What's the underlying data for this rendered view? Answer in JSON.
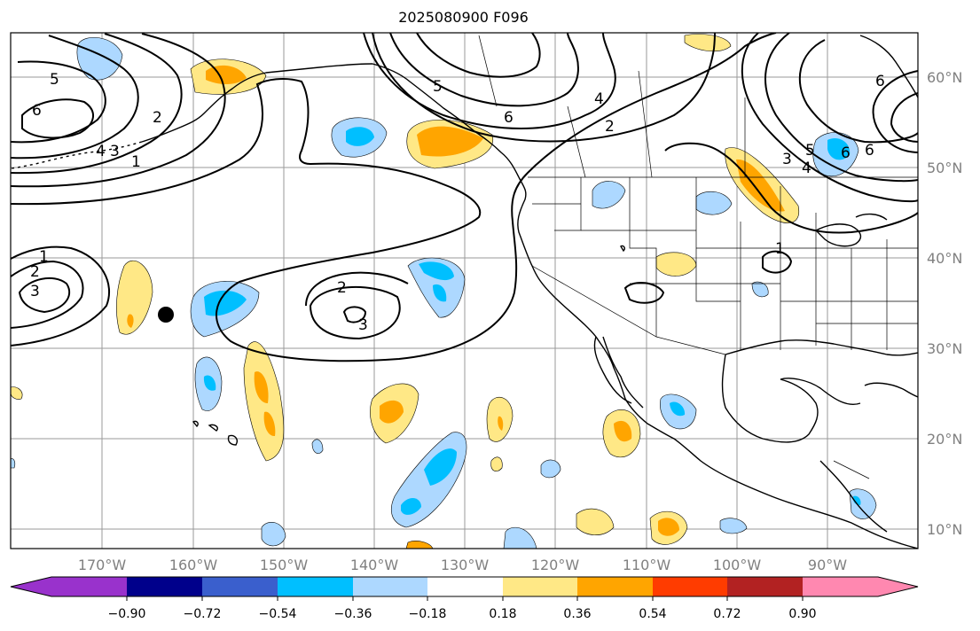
{
  "title": "2025080900 F096",
  "map": {
    "lat_labels": [
      "60°N",
      "50°N",
      "40°N",
      "30°N",
      "20°N",
      "10°N"
    ],
    "lon_labels": [
      "170°W",
      "160°W",
      "150°W",
      "140°W",
      "130°W",
      "120°W",
      "110°W",
      "100°W",
      "90°W"
    ],
    "contour_labels": [
      "5",
      "6",
      "2",
      "4",
      "3",
      "1",
      "5",
      "6",
      "2",
      "4",
      "6",
      "6",
      "5",
      "4",
      "3",
      "6",
      "1",
      "2",
      "3",
      "2",
      "3",
      "1"
    ],
    "marker": "black-dot"
  },
  "colorbar": {
    "labels": [
      "−0.90",
      "−0.72",
      "−0.54",
      "−0.36",
      "−0.18",
      "0.18",
      "0.36",
      "0.54",
      "0.72",
      "0.90"
    ],
    "colors": [
      "#9932cc",
      "#00008b",
      "#3a5fcd",
      "#00bfff",
      "#add8ff",
      "#ffffff",
      "#ffe886",
      "#ffa500",
      "#ff3c00",
      "#b22222",
      "#ff88b0"
    ]
  }
}
